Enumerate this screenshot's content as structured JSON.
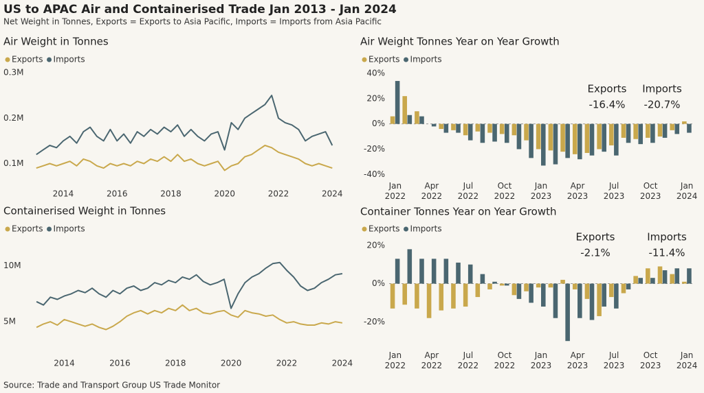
{
  "title": "US to APAC Air and Containerised Trade Jan 2013 - Jan 2024",
  "subtitle": "Net Weight in Tonnes, Exports = Exports to Asia Pacific, Imports = Imports from Asia Pacific",
  "source": "Source: Trade and Transport Group US Trade Monitor",
  "chart_data": [
    {
      "type": "line",
      "title": "Air Weight in Tonnes",
      "x": [
        2013,
        2013.25,
        2013.5,
        2013.75,
        2014,
        2014.25,
        2014.5,
        2014.75,
        2015,
        2015.25,
        2015.5,
        2015.75,
        2016,
        2016.25,
        2016.5,
        2016.75,
        2017,
        2017.25,
        2017.5,
        2017.75,
        2018,
        2018.25,
        2018.5,
        2018.75,
        2019,
        2019.25,
        2019.5,
        2019.75,
        2020,
        2020.25,
        2020.5,
        2020.75,
        2021,
        2021.25,
        2021.5,
        2021.75,
        2022,
        2022.25,
        2022.5,
        2022.75,
        2023,
        2023.25,
        2023.5,
        2023.75,
        2024
      ],
      "series": [
        {
          "name": "Exports",
          "color": "#c9a84c",
          "values": [
            90000,
            95000,
            100000,
            95000,
            100000,
            105000,
            95000,
            110000,
            105000,
            95000,
            90000,
            100000,
            95000,
            100000,
            95000,
            105000,
            100000,
            110000,
            105000,
            115000,
            105000,
            120000,
            105000,
            110000,
            100000,
            95000,
            100000,
            105000,
            85000,
            95000,
            100000,
            115000,
            120000,
            130000,
            140000,
            135000,
            125000,
            120000,
            115000,
            110000,
            100000,
            95000,
            100000,
            95000,
            90000
          ]
        },
        {
          "name": "Imports",
          "color": "#4a6670",
          "values": [
            120000,
            130000,
            140000,
            135000,
            150000,
            160000,
            145000,
            170000,
            180000,
            160000,
            150000,
            175000,
            150000,
            165000,
            145000,
            170000,
            160000,
            175000,
            165000,
            180000,
            170000,
            185000,
            160000,
            175000,
            160000,
            150000,
            165000,
            170000,
            130000,
            190000,
            175000,
            200000,
            210000,
            220000,
            230000,
            250000,
            200000,
            190000,
            185000,
            175000,
            150000,
            160000,
            165000,
            170000,
            140000
          ]
        }
      ],
      "xlim": [
        2012.8,
        2024.3
      ],
      "xticks": [
        2014,
        2016,
        2018,
        2020,
        2022,
        2024
      ],
      "ylim": [
        60000,
        300000
      ],
      "yticks": [
        {
          "value": 100000,
          "label": "0.1M"
        },
        {
          "value": 200000,
          "label": "0.2M"
        },
        {
          "value": 300000,
          "label": "0.3M"
        }
      ]
    },
    {
      "type": "bar",
      "title": "Air Weight Tonnes Year on Year Growth",
      "categories": [
        "Jan 2022",
        null,
        null,
        "Apr 2022",
        null,
        null,
        "Jul 2022",
        null,
        null,
        "Oct 2022",
        null,
        null,
        "Jan 2023",
        null,
        null,
        "Apr 2023",
        null,
        null,
        "Jul 2023",
        null,
        null,
        "Oct 2023",
        null,
        null,
        "Jan 2024"
      ],
      "series": [
        {
          "name": "Exports",
          "color": "#c9a84c",
          "values": [
            6,
            22,
            10,
            0,
            -4,
            -5,
            -9,
            -6,
            -7,
            -8,
            -9,
            -13,
            -20,
            -21,
            -22,
            -24,
            -23,
            -20,
            -17,
            -11,
            -12,
            -11,
            -10,
            -5,
            2
          ]
        },
        {
          "name": "Imports",
          "color": "#4a6670",
          "values": [
            34,
            7,
            6,
            -2,
            -7,
            -7,
            -13,
            -15,
            -14,
            -15,
            -20,
            -27,
            -33,
            -32,
            -27,
            -28,
            -25,
            -22,
            -25,
            -15,
            -16,
            -15,
            -11,
            -8,
            -7
          ]
        }
      ],
      "ylim": [
        -42,
        40
      ],
      "yticks": [
        {
          "value": -40,
          "label": "-40%"
        },
        {
          "value": -20,
          "label": "-20%"
        },
        {
          "value": 0,
          "label": "0%"
        },
        {
          "value": 20,
          "label": "20%"
        },
        {
          "value": 40,
          "label": "40%"
        }
      ],
      "annotations": [
        {
          "label": "Exports",
          "text": "-16.4%"
        },
        {
          "label": "Imports",
          "text": "-20.7%"
        }
      ]
    },
    {
      "type": "line",
      "title": "Containerised Weight in Tonnes",
      "x": [
        2013,
        2013.25,
        2013.5,
        2013.75,
        2014,
        2014.25,
        2014.5,
        2014.75,
        2015,
        2015.25,
        2015.5,
        2015.75,
        2016,
        2016.25,
        2016.5,
        2016.75,
        2017,
        2017.25,
        2017.5,
        2017.75,
        2018,
        2018.25,
        2018.5,
        2018.75,
        2019,
        2019.25,
        2019.5,
        2019.75,
        2020,
        2020.25,
        2020.5,
        2020.75,
        2021,
        2021.25,
        2021.5,
        2021.75,
        2022,
        2022.25,
        2022.5,
        2022.75,
        2023,
        2023.25,
        2023.5,
        2023.75,
        2024
      ],
      "series": [
        {
          "name": "Exports",
          "color": "#c9a84c",
          "values": [
            4500000,
            4800000,
            5000000,
            4700000,
            5200000,
            5000000,
            4800000,
            4600000,
            4800000,
            4500000,
            4300000,
            4600000,
            5000000,
            5500000,
            5800000,
            6000000,
            5700000,
            6000000,
            5800000,
            6200000,
            6000000,
            6500000,
            6000000,
            6200000,
            5800000,
            5700000,
            5900000,
            6000000,
            5600000,
            5400000,
            6000000,
            5800000,
            5700000,
            5500000,
            5600000,
            5200000,
            4900000,
            5000000,
            4800000,
            4700000,
            4700000,
            4900000,
            4800000,
            5000000,
            4900000
          ]
        },
        {
          "name": "Imports",
          "color": "#4a6670",
          "values": [
            6800000,
            6500000,
            7200000,
            7000000,
            7300000,
            7500000,
            7800000,
            7600000,
            8000000,
            7500000,
            7200000,
            7800000,
            7500000,
            8000000,
            8200000,
            7800000,
            8000000,
            8500000,
            8300000,
            8700000,
            8500000,
            9000000,
            8800000,
            9200000,
            8600000,
            8300000,
            8500000,
            8800000,
            6200000,
            7500000,
            8500000,
            9000000,
            9300000,
            9800000,
            10200000,
            10300000,
            9600000,
            9000000,
            8200000,
            7800000,
            8000000,
            8500000,
            8800000,
            9200000,
            9300000
          ]
        }
      ],
      "xlim": [
        2012.8,
        2024.3
      ],
      "xticks": [
        2014,
        2016,
        2018,
        2020,
        2022,
        2024
      ],
      "ylim": [
        2800000,
        12000000
      ],
      "yticks": [
        {
          "value": 5000000,
          "label": "5M"
        },
        {
          "value": 10000000,
          "label": "10M"
        }
      ]
    },
    {
      "type": "bar",
      "title": "Container Tonnes Year on Year Growth",
      "categories": [
        "Jan 2022",
        null,
        null,
        "Apr 2022",
        null,
        null,
        "Jul 2022",
        null,
        null,
        "Oct 2022",
        null,
        null,
        "Jan 2023",
        null,
        null,
        "Apr 2023",
        null,
        null,
        "Jul 2023",
        null,
        null,
        "Oct 2023",
        null,
        null,
        "Jan 2024"
      ],
      "series": [
        {
          "name": "Exports",
          "color": "#c9a84c",
          "values": [
            -13,
            -11,
            -13,
            -18,
            -14,
            -13,
            -12,
            -7,
            -3,
            -1,
            -6,
            -4,
            -2,
            -2,
            2,
            -3,
            -8,
            -17,
            -7,
            -5,
            4,
            8,
            9,
            5,
            1
          ]
        },
        {
          "name": "Imports",
          "color": "#4a6670",
          "values": [
            13,
            18,
            13,
            13,
            13,
            11,
            10,
            5,
            1,
            -1,
            -8,
            -10,
            -12,
            -18,
            -30,
            -18,
            -19,
            -12,
            -13,
            -3,
            3,
            3,
            7,
            8,
            8
          ]
        }
      ],
      "ylim": [
        -31,
        21
      ],
      "yticks": [
        {
          "value": -20,
          "label": "-20%"
        },
        {
          "value": 0,
          "label": "0%"
        },
        {
          "value": 20,
          "label": "20%"
        }
      ],
      "annotations": [
        {
          "label": "Exports",
          "text": "-2.1%"
        },
        {
          "label": "Imports",
          "text": "-11.4%"
        }
      ]
    }
  ]
}
